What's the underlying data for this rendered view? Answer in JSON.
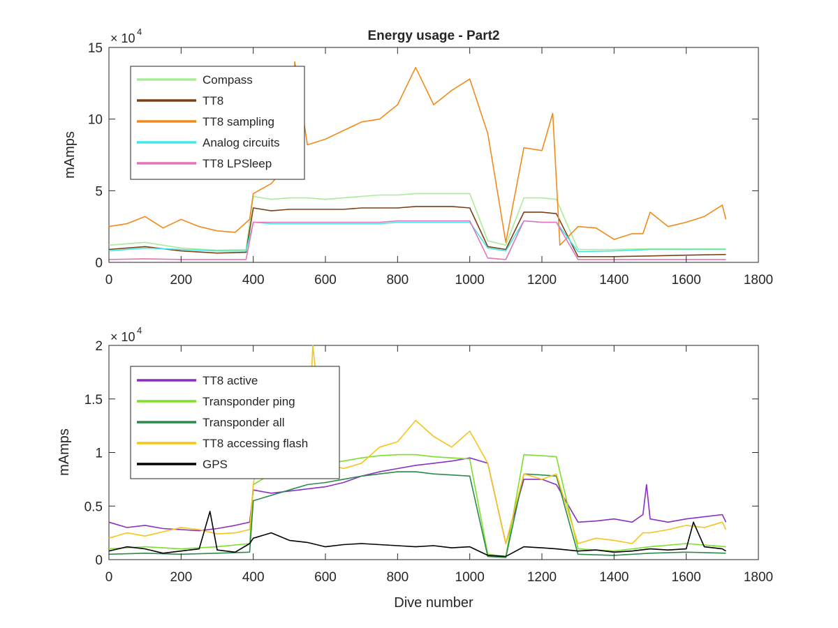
{
  "chart_data": [
    {
      "type": "line",
      "title": "Energy usage - Part2",
      "xlabel": "",
      "ylabel": "mAmps",
      "xlim": [
        0,
        1800
      ],
      "ylim": [
        0,
        150000
      ],
      "x_ticks": [
        0,
        200,
        400,
        600,
        800,
        1000,
        1200,
        1400,
        1600,
        1800
      ],
      "y_ticks": [
        0,
        50000,
        100000,
        150000
      ],
      "y_tick_labels": [
        "0",
        "5",
        "10",
        "15"
      ],
      "y_exponent": {
        "base": "× 10",
        "power": "4"
      },
      "grid": false,
      "legend_position": "top-left",
      "series": [
        {
          "name": "Compass",
          "color": "#a8ec98",
          "x": [
            0,
            100,
            200,
            300,
            380,
            400,
            450,
            500,
            550,
            600,
            650,
            700,
            750,
            800,
            850,
            900,
            950,
            1000,
            1050,
            1100,
            1150,
            1200,
            1240,
            1300,
            1400,
            1500,
            1600,
            1710
          ],
          "y": [
            12000,
            14000,
            10000,
            8500,
            9000,
            46000,
            44000,
            45000,
            45000,
            44000,
            45000,
            46000,
            47000,
            47000,
            48000,
            48000,
            48000,
            48000,
            15000,
            12000,
            45000,
            45000,
            44000,
            9000,
            9000,
            9500,
            9500,
            9500
          ]
        },
        {
          "name": "TT8",
          "color": "#7b3f13",
          "x": [
            0,
            100,
            200,
            300,
            380,
            400,
            450,
            500,
            550,
            600,
            650,
            700,
            750,
            800,
            850,
            900,
            950,
            1000,
            1050,
            1100,
            1150,
            1200,
            1240,
            1300,
            1400,
            1500,
            1600,
            1710
          ],
          "y": [
            9000,
            11000,
            8000,
            6500,
            7000,
            38000,
            36000,
            37000,
            37000,
            37000,
            37000,
            38000,
            38000,
            38000,
            39000,
            39000,
            39000,
            38000,
            11000,
            9000,
            35000,
            35000,
            34000,
            4000,
            4000,
            4500,
            5000,
            5500
          ]
        },
        {
          "name": "TT8 sampling",
          "color": "#f28a1a",
          "x": [
            0,
            50,
            100,
            150,
            200,
            250,
            300,
            350,
            390,
            400,
            450,
            500,
            515,
            550,
            600,
            650,
            700,
            750,
            800,
            850,
            900,
            950,
            1000,
            1050,
            1100,
            1150,
            1200,
            1230,
            1250,
            1300,
            1350,
            1400,
            1450,
            1480,
            1500,
            1550,
            1600,
            1650,
            1700,
            1710
          ],
          "y": [
            25000,
            27000,
            32000,
            24000,
            30000,
            25000,
            22000,
            21000,
            30000,
            48000,
            55000,
            70000,
            140000,
            82000,
            86000,
            92000,
            98000,
            100000,
            110000,
            136000,
            110000,
            120000,
            128000,
            90000,
            14000,
            80000,
            78000,
            104000,
            12000,
            25000,
            24000,
            16000,
            20000,
            20000,
            35000,
            25000,
            28000,
            32000,
            40000,
            30000
          ]
        },
        {
          "name": "Analog circuits",
          "color": "#3ee8e8",
          "x": [
            0,
            100,
            200,
            300,
            380,
            400,
            450,
            500,
            550,
            600,
            650,
            700,
            750,
            800,
            850,
            900,
            950,
            1000,
            1050,
            1100,
            1150,
            1200,
            1240,
            1300,
            1400,
            1500,
            1600,
            1710
          ],
          "y": [
            8000,
            10000,
            9000,
            8000,
            8000,
            28000,
            27000,
            27000,
            27000,
            27000,
            27000,
            27000,
            27000,
            28000,
            28000,
            28000,
            28000,
            28000,
            10000,
            8000,
            29000,
            28000,
            28000,
            7500,
            8000,
            9000,
            9000,
            9000
          ]
        },
        {
          "name": "TT8 LPSleep",
          "color": "#e374b8",
          "x": [
            0,
            100,
            200,
            300,
            380,
            400,
            450,
            500,
            550,
            600,
            650,
            700,
            750,
            800,
            850,
            900,
            950,
            1000,
            1050,
            1100,
            1150,
            1200,
            1240,
            1300,
            1400,
            1500,
            1600,
            1710
          ],
          "y": [
            2000,
            2500,
            2000,
            2000,
            2000,
            28000,
            28000,
            28000,
            28000,
            28000,
            28000,
            28000,
            28000,
            29000,
            29000,
            29000,
            29000,
            29000,
            3000,
            2000,
            29000,
            28000,
            28000,
            2000,
            2000,
            2000,
            2000,
            2000
          ]
        }
      ]
    },
    {
      "type": "line",
      "title": "",
      "xlabel": "Dive number",
      "ylabel": "mAmps",
      "xlim": [
        0,
        1800
      ],
      "ylim": [
        0,
        20000
      ],
      "x_ticks": [
        0,
        200,
        400,
        600,
        800,
        1000,
        1200,
        1400,
        1600,
        1800
      ],
      "y_ticks": [
        0,
        5000,
        10000,
        15000,
        20000
      ],
      "y_tick_labels": [
        "0",
        "0.5",
        "1",
        "1.5",
        "2"
      ],
      "y_exponent": {
        "base": "× 10",
        "power": "4"
      },
      "grid": false,
      "legend_position": "top-left",
      "series": [
        {
          "name": "TT8 active",
          "color": "#8a2fc4",
          "x": [
            0,
            50,
            100,
            150,
            200,
            250,
            300,
            350,
            390,
            400,
            450,
            500,
            550,
            600,
            650,
            700,
            750,
            800,
            850,
            900,
            950,
            1000,
            1050,
            1100,
            1150,
            1200,
            1240,
            1300,
            1350,
            1400,
            1450,
            1480,
            1490,
            1500,
            1550,
            1600,
            1650,
            1700,
            1710
          ],
          "y": [
            3500,
            3000,
            3200,
            2900,
            2800,
            2700,
            2900,
            3200,
            3500,
            6500,
            6200,
            6400,
            6600,
            6800,
            7200,
            7800,
            8200,
            8500,
            8800,
            9000,
            9200,
            9500,
            9000,
            1500,
            7500,
            7500,
            7000,
            3500,
            3600,
            3800,
            3500,
            4200,
            7000,
            3800,
            3500,
            3800,
            4000,
            4200,
            3500
          ]
        },
        {
          "name": "Transponder ping",
          "color": "#7ae02a",
          "x": [
            0,
            100,
            200,
            300,
            390,
            400,
            450,
            500,
            550,
            600,
            650,
            700,
            750,
            800,
            850,
            900,
            950,
            1000,
            1050,
            1100,
            1150,
            1200,
            1240,
            1300,
            1400,
            1500,
            1600,
            1710
          ],
          "y": [
            1000,
            1200,
            1000,
            1200,
            1500,
            7000,
            8000,
            8500,
            8800,
            9000,
            9200,
            9500,
            9700,
            9800,
            9800,
            9600,
            9500,
            9400,
            500,
            300,
            9800,
            9700,
            9600,
            1000,
            800,
            1200,
            1500,
            1200
          ]
        },
        {
          "name": "Transponder all",
          "color": "#2a8a4a",
          "x": [
            0,
            100,
            200,
            300,
            390,
            400,
            450,
            500,
            550,
            600,
            650,
            700,
            750,
            800,
            850,
            900,
            950,
            1000,
            1050,
            1100,
            1150,
            1200,
            1240,
            1300,
            1400,
            1500,
            1600,
            1710
          ],
          "y": [
            500,
            600,
            500,
            600,
            700,
            5500,
            6000,
            6500,
            7000,
            7200,
            7500,
            7800,
            8000,
            8200,
            8200,
            8000,
            7900,
            7800,
            300,
            200,
            8000,
            7900,
            7800,
            500,
            400,
            600,
            700,
            600
          ]
        },
        {
          "name": "TT8 accessing flash",
          "color": "#f5c518",
          "x": [
            0,
            50,
            100,
            150,
            200,
            250,
            300,
            350,
            390,
            400,
            450,
            500,
            550,
            565,
            600,
            650,
            700,
            750,
            800,
            850,
            900,
            950,
            1000,
            1050,
            1100,
            1150,
            1200,
            1240,
            1300,
            1350,
            1400,
            1450,
            1480,
            1500,
            1550,
            1600,
            1650,
            1700,
            1710
          ],
          "y": [
            2000,
            2500,
            2200,
            2600,
            3000,
            2800,
            2400,
            2500,
            2800,
            7000,
            18000,
            17500,
            8000,
            20000,
            9000,
            8500,
            9000,
            10500,
            11000,
            13000,
            11500,
            10500,
            12000,
            9000,
            1500,
            8000,
            7500,
            8000,
            1500,
            2000,
            1800,
            1500,
            2500,
            2500,
            2800,
            3200,
            3000,
            3500,
            2800
          ]
        },
        {
          "name": "GPS",
          "color": "#000000",
          "x": [
            0,
            50,
            100,
            150,
            200,
            250,
            280,
            300,
            350,
            390,
            400,
            450,
            500,
            550,
            600,
            650,
            700,
            750,
            800,
            850,
            900,
            950,
            1000,
            1050,
            1100,
            1150,
            1200,
            1240,
            1300,
            1350,
            1400,
            1450,
            1500,
            1550,
            1600,
            1620,
            1650,
            1700,
            1710
          ],
          "y": [
            800,
            1200,
            1000,
            600,
            800,
            1000,
            4500,
            900,
            700,
            1500,
            2000,
            2500,
            1800,
            1600,
            1200,
            1400,
            1500,
            1400,
            1300,
            1200,
            1300,
            1100,
            1200,
            400,
            300,
            1200,
            1100,
            1000,
            800,
            900,
            700,
            800,
            1000,
            900,
            1000,
            3500,
            1200,
            1000,
            800
          ]
        }
      ]
    }
  ]
}
